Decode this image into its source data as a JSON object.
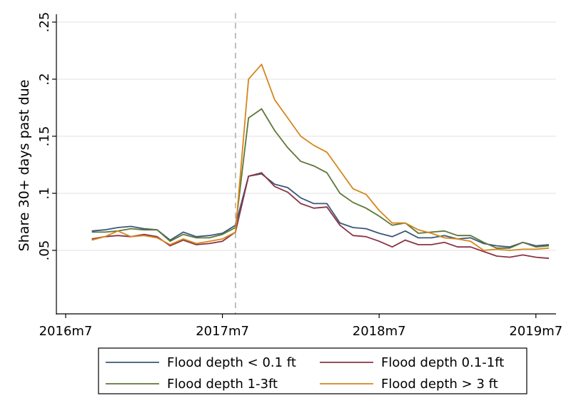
{
  "chart_data": {
    "type": "line",
    "title": "",
    "xlabel": "",
    "ylabel": "Share 30+ days past due",
    "x_ticks": [
      {
        "label": "2016m7",
        "month": "2016m7"
      },
      {
        "label": "2017m7",
        "month": "2017m7"
      },
      {
        "label": "2018m7",
        "month": "2018m7"
      },
      {
        "label": "2019m7",
        "month": "2019m7"
      }
    ],
    "y_ticks": [
      {
        "label": ".05",
        "value": 0.05
      },
      {
        "label": ".1",
        "value": 0.1
      },
      {
        "label": ".15",
        "value": 0.15
      },
      {
        "label": ".2",
        "value": 0.2
      },
      {
        "label": ".25",
        "value": 0.25
      }
    ],
    "ylim": [
      -0.005,
      0.257
    ],
    "xlim": [
      "2016m6",
      "2019m9"
    ],
    "grid": true,
    "reference_line": {
      "month": "2017m8",
      "style": "dashed",
      "color": "#b0b0b0"
    },
    "x": [
      "2016m9",
      "2016m10",
      "2016m11",
      "2016m12",
      "2017m1",
      "2017m2",
      "2017m3",
      "2017m4",
      "2017m5",
      "2017m6",
      "2017m7",
      "2017m8",
      "2017m9",
      "2017m10",
      "2017m11",
      "2017m12",
      "2018m1",
      "2018m2",
      "2018m3",
      "2018m4",
      "2018m5",
      "2018m6",
      "2018m7",
      "2018m8",
      "2018m9",
      "2018m10",
      "2018m11",
      "2018m12",
      "2019m1",
      "2019m2",
      "2019m3",
      "2019m4",
      "2019m5",
      "2019m6",
      "2019m7",
      "2019m8"
    ],
    "series": [
      {
        "name": "Flood depth < 0.1 ft",
        "color": "#3b5878",
        "values": [
          0.067,
          0.068,
          0.07,
          0.071,
          0.069,
          0.068,
          0.059,
          0.066,
          0.062,
          0.063,
          0.065,
          0.072,
          0.115,
          0.117,
          0.108,
          0.105,
          0.096,
          0.091,
          0.091,
          0.074,
          0.07,
          0.069,
          0.065,
          0.062,
          0.067,
          0.061,
          0.061,
          0.063,
          0.06,
          0.061,
          0.056,
          0.054,
          0.053,
          0.057,
          0.054,
          0.055
        ]
      },
      {
        "name": "Flood depth 0.1-1ft",
        "color": "#8a3445",
        "values": [
          0.06,
          0.062,
          0.063,
          0.062,
          0.064,
          0.062,
          0.054,
          0.059,
          0.055,
          0.056,
          0.058,
          0.066,
          0.115,
          0.118,
          0.106,
          0.101,
          0.091,
          0.087,
          0.088,
          0.072,
          0.063,
          0.062,
          0.058,
          0.053,
          0.059,
          0.055,
          0.055,
          0.057,
          0.053,
          0.053,
          0.049,
          0.045,
          0.044,
          0.046,
          0.044,
          0.043
        ]
      },
      {
        "name": "Flood depth 1-3ft",
        "color": "#5e7638",
        "values": [
          0.066,
          0.066,
          0.067,
          0.069,
          0.068,
          0.068,
          0.058,
          0.064,
          0.061,
          0.061,
          0.064,
          0.07,
          0.166,
          0.174,
          0.155,
          0.14,
          0.128,
          0.124,
          0.118,
          0.1,
          0.092,
          0.087,
          0.08,
          0.072,
          0.074,
          0.065,
          0.066,
          0.067,
          0.063,
          0.063,
          0.057,
          0.052,
          0.052,
          0.057,
          0.053,
          0.054
        ]
      },
      {
        "name": "Flood depth > 3 ft",
        "color": "#d5861c",
        "values": [
          0.059,
          0.062,
          0.067,
          0.062,
          0.063,
          0.061,
          0.055,
          0.06,
          0.056,
          0.058,
          0.06,
          0.066,
          0.2,
          0.213,
          0.182,
          0.166,
          0.15,
          0.142,
          0.136,
          0.12,
          0.104,
          0.099,
          0.085,
          0.074,
          0.074,
          0.068,
          0.065,
          0.061,
          0.06,
          0.058,
          0.05,
          0.051,
          0.05,
          0.051,
          0.051,
          0.052
        ]
      }
    ],
    "legend": {
      "placement": "bottom",
      "columns": 2
    }
  }
}
